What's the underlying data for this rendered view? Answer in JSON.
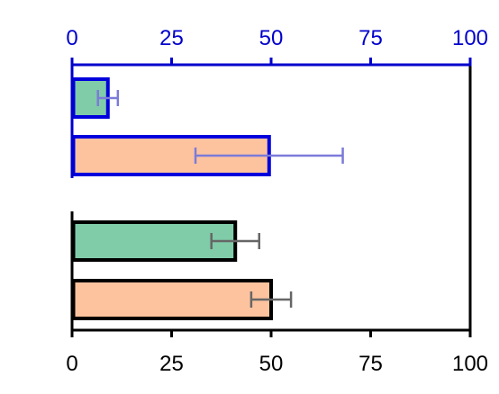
{
  "chart_data": {
    "type": "bar",
    "orientation": "horizontal",
    "title": "",
    "xlabel": "",
    "ylabel": "",
    "xlim": [
      0,
      100
    ],
    "grid": false,
    "legend": "none",
    "top_axis": {
      "ticks": [
        0,
        25,
        50,
        75,
        100
      ],
      "tick_labels": [
        "0",
        "25",
        "50",
        "75",
        "100"
      ],
      "color": "#0000cc"
    },
    "bottom_axis": {
      "ticks": [
        0,
        25,
        50,
        75,
        100
      ],
      "tick_labels": [
        "0",
        "25",
        "50",
        "75",
        "100"
      ],
      "color": "#000000"
    },
    "groups": [
      {
        "axis_color": "#0000cc",
        "bars": [
          {
            "value": 9,
            "error": 2.5,
            "fill": "#80cba8",
            "outline": "#0000dd",
            "error_color": "#7b7bd9"
          },
          {
            "value": 49.5,
            "error": 18.5,
            "fill": "#fdc39e",
            "outline": "#0000dd",
            "error_color": "#7b7bd9"
          }
        ]
      },
      {
        "axis_color": "#000000",
        "bars": [
          {
            "value": 41,
            "error": 6,
            "fill": "#80cba8",
            "outline": "#000000",
            "error_color": "#666666"
          },
          {
            "value": 50,
            "error": 5,
            "fill": "#fdc39e",
            "outline": "#000000",
            "error_color": "#666666"
          }
        ]
      }
    ]
  }
}
